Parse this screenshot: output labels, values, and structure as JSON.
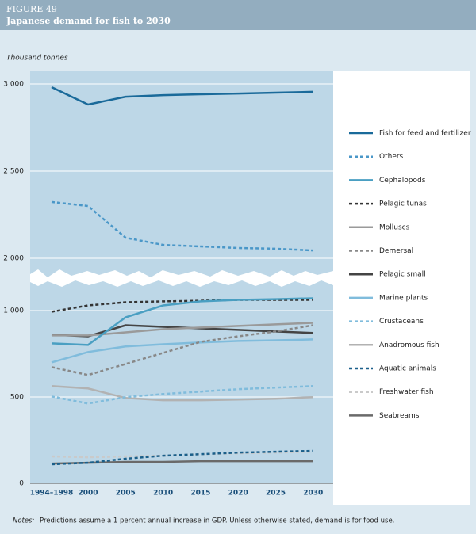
{
  "header": {
    "figure": "FIGURE 49",
    "title": "Japanese demand for fish to 2030"
  },
  "chart_data": {
    "type": "line",
    "y_label": "Thousand tonnes",
    "categories": [
      "1994–1998",
      "2000",
      "2005",
      "2010",
      "2015",
      "2020",
      "2025",
      "2030"
    ],
    "ylim": [
      0,
      3000
    ],
    "ybreak": [
      1000,
      2000
    ],
    "yticks": [
      0,
      500,
      {
        "value": 1000,
        "label": "1 000"
      },
      {
        "value": 2000,
        "label": "2 000"
      },
      {
        "value": 2500,
        "label": "2 500"
      },
      {
        "value": 3000,
        "label": "3 000"
      }
    ],
    "grid": true,
    "legend": "right",
    "series": [
      {
        "name": "Fish for feed and fertilizer",
        "color": "#1a6a9a",
        "dash": false,
        "values": [
          2982,
          2882,
          2927,
          2936,
          2941,
          2945,
          2950,
          2955
        ]
      },
      {
        "name": "Others",
        "color": "#4a97c8",
        "dash": true,
        "values": [
          2323,
          2300,
          2118,
          2077,
          2068,
          2059,
          2055,
          2045
        ]
      },
      {
        "name": "Cephalopods",
        "color": "#4a9fc2",
        "dash": false,
        "values": [
          810,
          801,
          961,
          1030,
          1053,
          1062,
          1066,
          1071
        ]
      },
      {
        "name": "Pelagic tunas",
        "color": "#333333",
        "dash": true,
        "values": [
          993,
          1030,
          1048,
          1053,
          1057,
          1062,
          1062,
          1062
        ]
      },
      {
        "name": "Molluscs",
        "color": "#9a9a9a",
        "dash": false,
        "values": [
          856,
          856,
          874,
          892,
          902,
          911,
          920,
          929
        ]
      },
      {
        "name": "Demersal",
        "color": "#888888",
        "dash": true,
        "values": [
          673,
          627,
          691,
          755,
          819,
          851,
          879,
          915
        ]
      },
      {
        "name": "Pelagic small",
        "color": "#444444",
        "dash": false,
        "values": [
          860,
          851,
          915,
          906,
          897,
          888,
          879,
          870
        ]
      },
      {
        "name": "Marine plants",
        "color": "#80bcdc",
        "dash": false,
        "values": [
          700,
          760,
          792,
          805,
          815,
          824,
          828,
          833
        ]
      },
      {
        "name": "Crustaceans",
        "color": "#80bcdc",
        "dash": true,
        "values": [
          503,
          462,
          499,
          517,
          531,
          545,
          554,
          563
        ]
      },
      {
        "name": "Anadromous fish",
        "color": "#b2b2b2",
        "dash": false,
        "values": [
          563,
          549,
          494,
          481,
          481,
          485,
          490,
          499
        ]
      },
      {
        "name": "Aquatic animals",
        "color": "#1a5f8a",
        "dash": true,
        "values": [
          110,
          119,
          142,
          160,
          169,
          178,
          183,
          188
        ]
      },
      {
        "name": "Freshwater fish",
        "color": "#cacaca",
        "dash": true,
        "values": [
          156,
          151,
          156,
          160,
          169,
          174,
          178,
          183
        ]
      },
      {
        "name": "Seabreams",
        "color": "#6a6a6a",
        "dash": false,
        "values": [
          114,
          119,
          124,
          124,
          128,
          128,
          128,
          128
        ]
      }
    ]
  },
  "notes": {
    "label": "Notes:",
    "text": "Predictions assume a 1 percent annual increase in GDP. Unless otherwise stated, demand is for food use."
  }
}
